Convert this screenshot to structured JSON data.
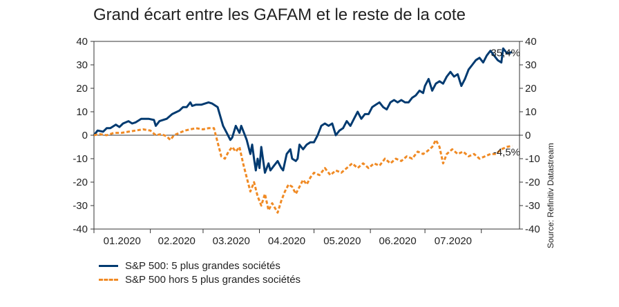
{
  "chart_data": {
    "type": "line",
    "title": "Grand écart entre les GAFAM et le reste de la cote",
    "source": "Source: Refinitiv Datastream",
    "ylim": [
      -40,
      40
    ],
    "yticks": [
      40,
      30,
      20,
      10,
      0,
      -10,
      -20,
      -30,
      -40
    ],
    "x_tick_labels": [
      "01.2020",
      "02.2020",
      "03.2020",
      "04.2020",
      "05.2020",
      "06.2020",
      "07.2020"
    ],
    "colors": {
      "top5": "#003a70",
      "rest": "#f08a24",
      "axis": "#333333"
    },
    "end_labels": {
      "top5": "35,4%",
      "rest": "-4,5%"
    },
    "series": [
      {
        "name": "S&P 500: 5 plus grandes sociétés",
        "style": "solid",
        "values": [
          [
            "2020-01-01",
            0
          ],
          [
            "2020-01-03",
            2
          ],
          [
            "2020-01-06",
            1.5
          ],
          [
            "2020-01-08",
            3
          ],
          [
            "2020-01-10",
            3
          ],
          [
            "2020-01-13",
            4.5
          ],
          [
            "2020-01-15",
            3.5
          ],
          [
            "2020-01-17",
            5
          ],
          [
            "2020-01-20",
            6
          ],
          [
            "2020-01-22",
            5
          ],
          [
            "2020-01-24",
            5.5
          ],
          [
            "2020-01-27",
            7
          ],
          [
            "2020-01-31",
            7
          ],
          [
            "2020-02-03",
            6.5
          ],
          [
            "2020-02-04",
            4
          ],
          [
            "2020-02-06",
            6
          ],
          [
            "2020-02-10",
            7
          ],
          [
            "2020-02-13",
            9
          ],
          [
            "2020-02-17",
            10.5
          ],
          [
            "2020-02-19",
            12
          ],
          [
            "2020-02-21",
            12
          ],
          [
            "2020-02-23",
            14
          ],
          [
            "2020-02-24",
            12.5
          ],
          [
            "2020-02-26",
            13
          ],
          [
            "2020-02-29",
            13
          ],
          [
            "2020-03-04",
            14
          ],
          [
            "2020-03-06",
            13.5
          ],
          [
            "2020-03-09",
            12
          ],
          [
            "2020-03-12",
            4
          ],
          [
            "2020-03-14",
            1
          ],
          [
            "2020-03-16",
            -2
          ],
          [
            "2020-03-17",
            -1
          ],
          [
            "2020-03-19",
            4
          ],
          [
            "2020-03-21",
            1
          ],
          [
            "2020-03-22",
            4
          ],
          [
            "2020-03-24",
            0
          ],
          [
            "2020-03-25",
            -2
          ],
          [
            "2020-03-27",
            -8
          ],
          [
            "2020-03-28",
            -4
          ],
          [
            "2020-03-29",
            -10
          ],
          [
            "2020-03-30",
            -15
          ],
          [
            "2020-03-31",
            -10
          ],
          [
            "2020-04-01",
            -14
          ],
          [
            "2020-04-02",
            -5
          ],
          [
            "2020-04-04",
            -16
          ],
          [
            "2020-04-06",
            -12
          ],
          [
            "2020-04-07",
            -15
          ],
          [
            "2020-04-09",
            -13
          ],
          [
            "2020-04-11",
            -11
          ],
          [
            "2020-04-13",
            -14
          ],
          [
            "2020-04-14",
            -15
          ],
          [
            "2020-04-16",
            -8
          ],
          [
            "2020-04-18",
            -6
          ],
          [
            "2020-04-19",
            -10
          ],
          [
            "2020-04-21",
            -11
          ],
          [
            "2020-04-22",
            -10
          ],
          [
            "2020-04-23",
            -4
          ],
          [
            "2020-04-25",
            -6
          ],
          [
            "2020-04-27",
            -4
          ],
          [
            "2020-04-29",
            -3
          ],
          [
            "2020-05-01",
            -3
          ],
          [
            "2020-05-03",
            0
          ],
          [
            "2020-05-05",
            4
          ],
          [
            "2020-05-07",
            5
          ],
          [
            "2020-05-09",
            4
          ],
          [
            "2020-05-11",
            5
          ],
          [
            "2020-05-13",
            0
          ],
          [
            "2020-05-15",
            2
          ],
          [
            "2020-05-17",
            3
          ],
          [
            "2020-05-19",
            6
          ],
          [
            "2020-05-21",
            4
          ],
          [
            "2020-05-23",
            7
          ],
          [
            "2020-05-25",
            10
          ],
          [
            "2020-05-27",
            7
          ],
          [
            "2020-05-29",
            9
          ],
          [
            "2020-05-31",
            9
          ],
          [
            "2020-06-02",
            12
          ],
          [
            "2020-06-04",
            13
          ],
          [
            "2020-06-06",
            14
          ],
          [
            "2020-06-08",
            12
          ],
          [
            "2020-06-10",
            11
          ],
          [
            "2020-06-12",
            14
          ],
          [
            "2020-06-14",
            15
          ],
          [
            "2020-06-16",
            14
          ],
          [
            "2020-06-18",
            15
          ],
          [
            "2020-06-20",
            14
          ],
          [
            "2020-06-22",
            14
          ],
          [
            "2020-06-24",
            16
          ],
          [
            "2020-06-26",
            17
          ],
          [
            "2020-06-28",
            19
          ],
          [
            "2020-06-30",
            18
          ],
          [
            "2020-07-01",
            21
          ],
          [
            "2020-07-03",
            24
          ],
          [
            "2020-07-05",
            19
          ],
          [
            "2020-07-07",
            22
          ],
          [
            "2020-07-09",
            23
          ],
          [
            "2020-07-11",
            22
          ],
          [
            "2020-07-13",
            25
          ],
          [
            "2020-07-15",
            27
          ],
          [
            "2020-07-17",
            25
          ],
          [
            "2020-07-19",
            26
          ],
          [
            "2020-07-21",
            21
          ],
          [
            "2020-07-23",
            24
          ],
          [
            "2020-07-25",
            28
          ],
          [
            "2020-07-27",
            30
          ],
          [
            "2020-07-29",
            32
          ],
          [
            "2020-07-31",
            33
          ],
          [
            "2020-08-02",
            31
          ],
          [
            "2020-08-04",
            34
          ],
          [
            "2020-08-06",
            36
          ],
          [
            "2020-08-08",
            34
          ],
          [
            "2020-08-10",
            32
          ],
          [
            "2020-08-12",
            31
          ],
          [
            "2020-08-13",
            37
          ],
          [
            "2020-08-15",
            35
          ],
          [
            "2020-08-18",
            35.4
          ]
        ]
      },
      {
        "name": "S&P 500 hors 5 plus grandes sociétés",
        "style": "dashed",
        "values": [
          [
            "2020-01-01",
            0
          ],
          [
            "2020-01-04",
            0.5
          ],
          [
            "2020-01-08",
            0
          ],
          [
            "2020-01-12",
            1
          ],
          [
            "2020-01-16",
            1
          ],
          [
            "2020-01-20",
            1.5
          ],
          [
            "2020-01-24",
            2
          ],
          [
            "2020-01-28",
            2.5
          ],
          [
            "2020-02-01",
            2
          ],
          [
            "2020-02-04",
            0
          ],
          [
            "2020-02-07",
            0.5
          ],
          [
            "2020-02-10",
            -0.5
          ],
          [
            "2020-02-12",
            -2
          ],
          [
            "2020-02-14",
            0
          ],
          [
            "2020-02-17",
            1
          ],
          [
            "2020-02-20",
            2
          ],
          [
            "2020-02-23",
            2.5
          ],
          [
            "2020-02-26",
            3
          ],
          [
            "2020-03-01",
            2.5
          ],
          [
            "2020-03-04",
            3
          ],
          [
            "2020-03-07",
            3
          ],
          [
            "2020-03-09",
            -3
          ],
          [
            "2020-03-11",
            -9
          ],
          [
            "2020-03-13",
            -10
          ],
          [
            "2020-03-15",
            -7
          ],
          [
            "2020-03-17",
            -5
          ],
          [
            "2020-03-19",
            -7
          ],
          [
            "2020-03-21",
            -5
          ],
          [
            "2020-03-23",
            -12
          ],
          [
            "2020-03-25",
            -18
          ],
          [
            "2020-03-27",
            -24
          ],
          [
            "2020-03-29",
            -20
          ],
          [
            "2020-03-31",
            -26
          ],
          [
            "2020-04-02",
            -30
          ],
          [
            "2020-04-04",
            -25
          ],
          [
            "2020-04-06",
            -32
          ],
          [
            "2020-04-08",
            -29
          ],
          [
            "2020-04-11",
            -33
          ],
          [
            "2020-04-13",
            -28
          ],
          [
            "2020-04-15",
            -24
          ],
          [
            "2020-04-17",
            -21
          ],
          [
            "2020-04-19",
            -22
          ],
          [
            "2020-04-21",
            -25
          ],
          [
            "2020-04-23",
            -22
          ],
          [
            "2020-04-25",
            -19
          ],
          [
            "2020-04-27",
            -21
          ],
          [
            "2020-04-29",
            -18
          ],
          [
            "2020-05-01",
            -16
          ],
          [
            "2020-05-04",
            -17
          ],
          [
            "2020-05-07",
            -14
          ],
          [
            "2020-05-10",
            -17
          ],
          [
            "2020-05-13",
            -15
          ],
          [
            "2020-05-16",
            -16
          ],
          [
            "2020-05-19",
            -14
          ],
          [
            "2020-05-22",
            -12
          ],
          [
            "2020-05-25",
            -14
          ],
          [
            "2020-05-28",
            -12
          ],
          [
            "2020-05-31",
            -14
          ],
          [
            "2020-06-03",
            -12
          ],
          [
            "2020-06-06",
            -13
          ],
          [
            "2020-06-09",
            -10
          ],
          [
            "2020-06-12",
            -12
          ],
          [
            "2020-06-15",
            -10
          ],
          [
            "2020-06-18",
            -11
          ],
          [
            "2020-06-21",
            -9
          ],
          [
            "2020-06-24",
            -10
          ],
          [
            "2020-06-27",
            -7
          ],
          [
            "2020-06-30",
            -8
          ],
          [
            "2020-07-02",
            -7
          ],
          [
            "2020-07-05",
            -5
          ],
          [
            "2020-07-07",
            -2
          ],
          [
            "2020-07-09",
            -5
          ],
          [
            "2020-07-11",
            -12
          ],
          [
            "2020-07-13",
            -8
          ],
          [
            "2020-07-16",
            -6
          ],
          [
            "2020-07-19",
            -8
          ],
          [
            "2020-07-22",
            -7
          ],
          [
            "2020-07-25",
            -9
          ],
          [
            "2020-07-28",
            -8
          ],
          [
            "2020-07-31",
            -10
          ],
          [
            "2020-08-03",
            -9
          ],
          [
            "2020-08-06",
            -8
          ],
          [
            "2020-08-09",
            -8
          ],
          [
            "2020-08-12",
            -6
          ],
          [
            "2020-08-15",
            -5
          ],
          [
            "2020-08-18",
            -4.5
          ]
        ]
      }
    ]
  }
}
